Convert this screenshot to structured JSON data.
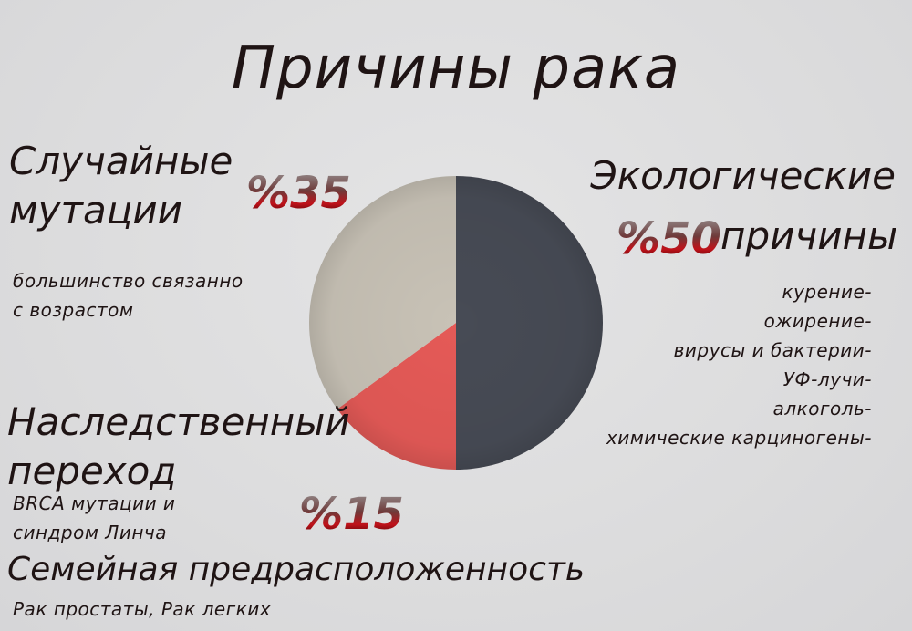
{
  "title": "Причины рака",
  "chart_data": {
    "type": "pie",
    "slices": [
      {
        "label": "Экологические причины",
        "value": 50,
        "color": "#474b55"
      },
      {
        "label": "Наследственный переход",
        "value": 15,
        "color": "#e55a57"
      },
      {
        "label": "Случайные мутации",
        "value": 35,
        "color": "#c8c2b6"
      }
    ]
  },
  "sections": {
    "random": {
      "heading_line1": "Случайные",
      "heading_line2": "мутации",
      "pct": "%35",
      "desc_line1": "большинство связанно",
      "desc_line2": "с возрастом"
    },
    "ecological": {
      "heading_line1": "Экологические",
      "heading_line2": "причины",
      "pct": "%50",
      "items": [
        "курение-",
        "ожирение-",
        "вирусы и бактерии-",
        "УФ-лучи-",
        "алкоголь-",
        "химические карциногены-"
      ]
    },
    "hereditary": {
      "heading_line1": "Наследственный",
      "heading_line2": "переход",
      "pct": "%15",
      "desc_line1": "BRCA мутации и",
      "desc_line2": "синдром Линча"
    },
    "family": {
      "heading": "Семейная предрасположенность",
      "desc": "Рак простаты, Рак легких"
    }
  }
}
